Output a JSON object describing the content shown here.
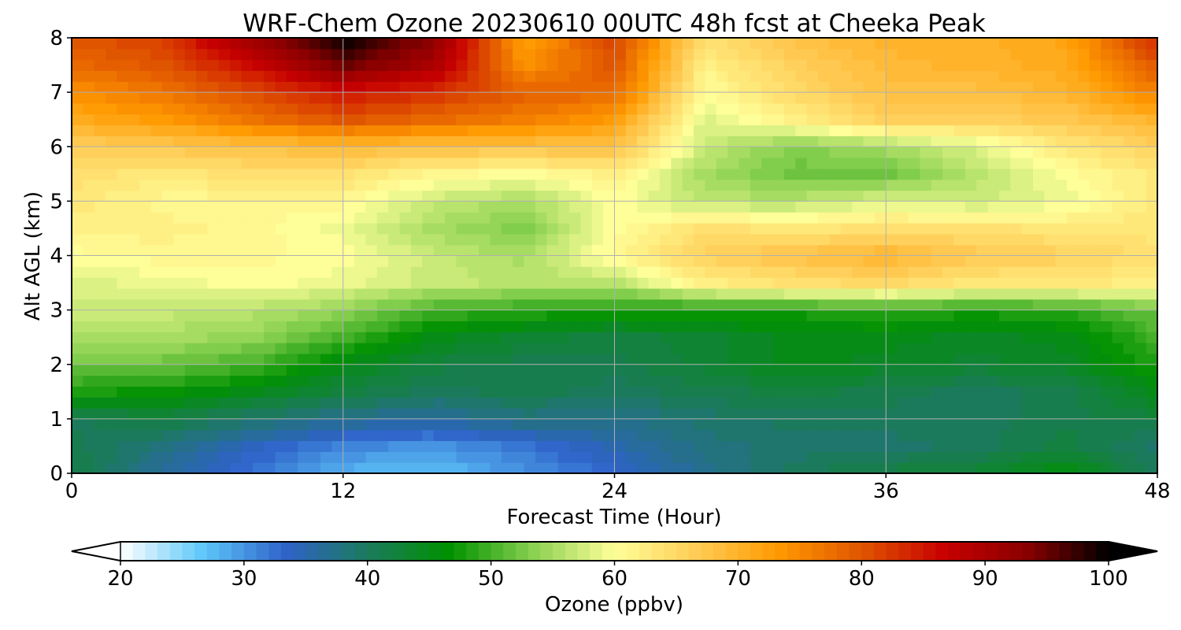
{
  "chart_data": {
    "type": "heatmap",
    "title": "WRF-Chem Ozone  20230610 00UTC 48h fcst at Cheeka Peak",
    "xlabel": "Forecast Time (Hour)",
    "ylabel": "Alt AGL (km)",
    "xlim": [
      0,
      48
    ],
    "ylim": [
      0,
      8
    ],
    "x_ticks": [
      0,
      12,
      24,
      36,
      48
    ],
    "y_ticks": [
      0,
      1,
      2,
      3,
      4,
      5,
      6,
      7,
      8
    ],
    "grid": true,
    "x": [
      0,
      4,
      8,
      12,
      16,
      20,
      24,
      28,
      32,
      36,
      40,
      44,
      48
    ],
    "y": [
      0,
      0.5,
      1,
      1.5,
      2,
      2.5,
      3,
      3.5,
      4,
      4.5,
      5,
      5.5,
      6,
      6.5,
      7,
      7.5,
      8
    ],
    "z": [
      [
        42,
        36,
        32,
        28,
        27,
        30,
        33,
        37,
        40,
        42,
        43,
        46,
        40
      ],
      [
        41,
        38,
        34,
        31,
        30,
        32,
        35,
        38,
        39,
        39,
        40,
        42,
        39
      ],
      [
        40,
        42,
        39,
        37,
        36,
        38,
        37,
        39,
        40,
        40,
        40,
        41,
        42
      ],
      [
        48,
        47,
        45,
        42,
        40,
        41,
        40,
        41,
        42,
        41,
        40,
        41,
        45
      ],
      [
        52,
        52,
        50,
        45,
        42,
        41,
        41,
        43,
        45,
        44,
        43,
        44,
        48
      ],
      [
        55,
        55,
        54,
        50,
        45,
        43,
        42,
        43,
        45,
        45,
        44,
        45,
        50
      ],
      [
        57,
        57,
        56,
        54,
        50,
        49,
        48,
        48,
        48,
        49,
        48,
        49,
        52
      ],
      [
        58,
        59,
        60,
        59,
        57,
        56,
        56,
        62,
        64,
        65,
        63,
        63,
        62
      ],
      [
        60,
        61,
        61,
        60,
        57,
        55,
        61,
        66,
        68,
        70,
        67,
        66,
        64
      ],
      [
        62,
        62,
        61,
        59,
        55,
        53,
        60,
        64,
        63,
        64,
        64,
        63,
        63
      ],
      [
        63,
        61,
        61,
        61,
        57,
        55,
        60,
        56,
        56,
        58,
        57,
        59,
        63
      ],
      [
        64,
        63,
        64,
        64,
        61,
        60,
        62,
        55,
        52,
        52,
        56,
        60,
        63
      ],
      [
        66,
        67,
        68,
        69,
        68,
        68,
        68,
        57,
        53,
        55,
        58,
        63,
        66
      ],
      [
        71,
        73,
        77,
        80,
        78,
        76,
        73,
        58,
        62,
        66,
        66,
        67,
        70
      ],
      [
        74,
        77,
        81,
        85,
        83,
        79,
        78,
        60,
        65,
        68,
        68,
        70,
        76
      ],
      [
        78,
        80,
        86,
        95,
        90,
        74,
        80,
        62,
        66,
        69,
        70,
        71,
        80
      ],
      [
        80,
        82,
        92,
        100,
        93,
        72,
        82,
        64,
        68,
        70,
        70,
        72,
        84
      ]
    ],
    "colorbar": {
      "label": "Ozone  (ppbv)",
      "min": 20,
      "max": 100,
      "ticks": [
        20,
        30,
        40,
        50,
        60,
        70,
        80,
        90,
        100
      ],
      "extend": "both",
      "orientation": "horizontal",
      "colors": [
        "#ffffff",
        "#5ec8fa",
        "#2f62c9",
        "#1c7a5c",
        "#009100",
        "#88d050",
        "#ffff99",
        "#ffcc55",
        "#ff9900",
        "#e05500",
        "#c80000",
        "#8a0000",
        "#000000"
      ]
    }
  }
}
